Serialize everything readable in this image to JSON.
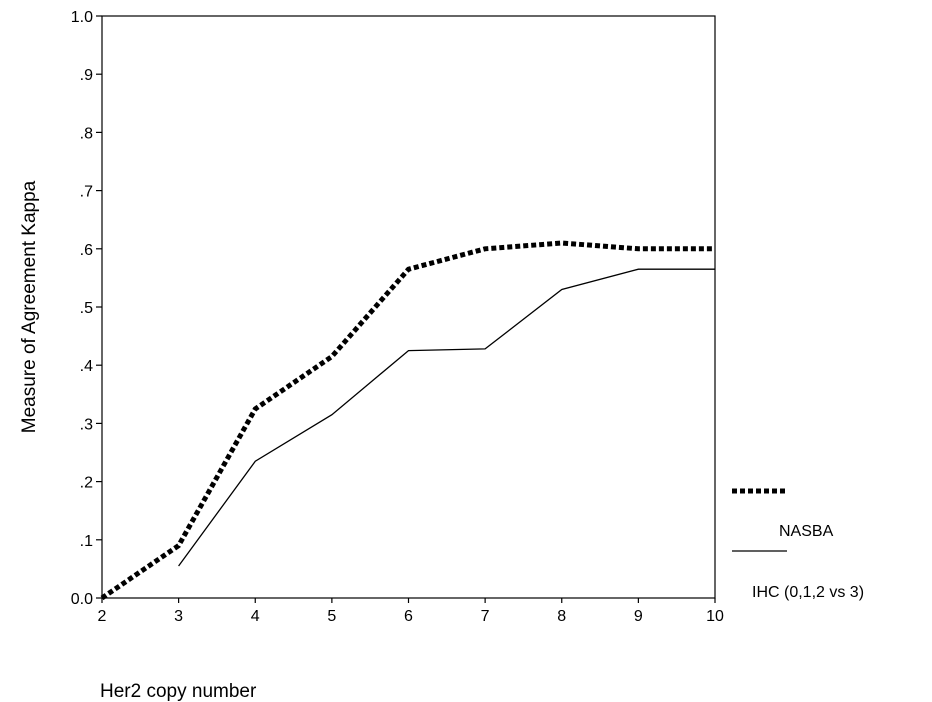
{
  "chart_data": {
    "type": "line",
    "title": "",
    "xlabel": "Her2 copy number",
    "ylabel": "Measure of Agreement Kappa",
    "xlim": [
      2,
      10
    ],
    "ylim": [
      0,
      1
    ],
    "x_ticks": [
      "2",
      "3",
      "4",
      "5",
      "6",
      "7",
      "8",
      "9",
      "10"
    ],
    "y_ticks": [
      "0.0",
      ".1",
      ".2",
      ".3",
      ".4",
      ".5",
      ".6",
      ".7",
      ".8",
      ".9",
      "1.0"
    ],
    "grid": false,
    "legend_position": "right",
    "series": [
      {
        "name": "NASBA",
        "style": "dotted",
        "color": "#000000",
        "x": [
          2,
          3,
          4,
          5,
          6,
          7,
          8,
          9,
          10
        ],
        "y": [
          0.0,
          0.09,
          0.325,
          0.415,
          0.565,
          0.6,
          0.61,
          0.6,
          0.6
        ]
      },
      {
        "name": "IHC (0,1,2 vs 3)",
        "style": "solid",
        "color": "#000000",
        "x": [
          3,
          4,
          5,
          6,
          7,
          8,
          9,
          10
        ],
        "y": [
          0.055,
          0.235,
          0.315,
          0.425,
          0.428,
          0.53,
          0.565,
          0.565
        ]
      }
    ]
  }
}
